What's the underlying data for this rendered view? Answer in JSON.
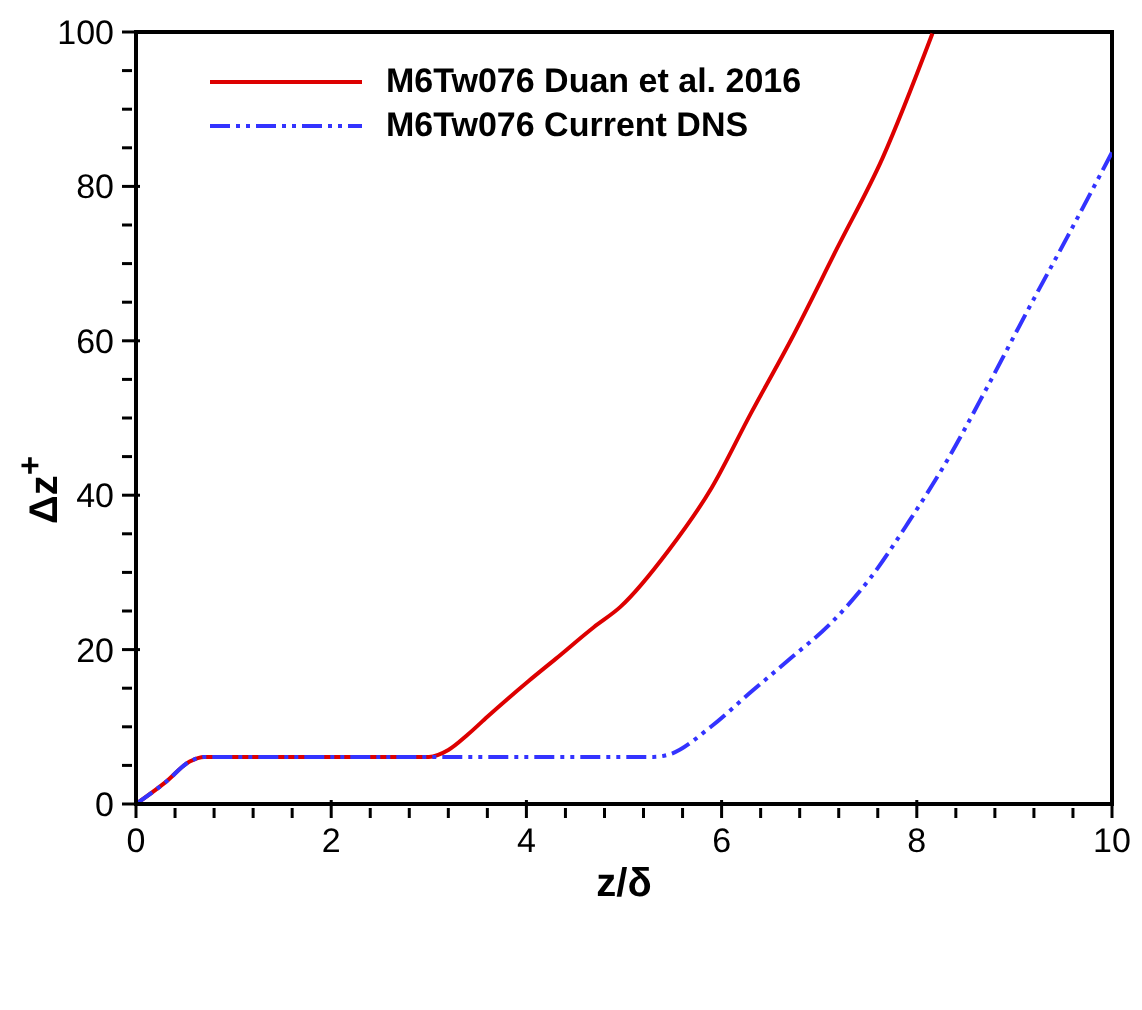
{
  "chart_data": {
    "type": "line",
    "xlabel": "z/δ",
    "ylabel": "Δz$^{+}$",
    "xlim": [
      0,
      10
    ],
    "ylim": [
      0,
      100
    ],
    "xticks": [
      0,
      {
        "value": 0.4,
        "label": null
      },
      {
        "value": 0.8,
        "label": null
      },
      {
        "value": 1.2,
        "label": null
      },
      {
        "value": 1.6,
        "label": null
      },
      2,
      {
        "value": 2.4,
        "label": null
      },
      {
        "value": 2.8,
        "label": null
      },
      {
        "value": 3.2,
        "label": null
      },
      {
        "value": 3.6,
        "label": null
      },
      4,
      {
        "value": 4.4,
        "label": null
      },
      {
        "value": 4.8,
        "label": null
      },
      {
        "value": 5.2,
        "label": null
      },
      {
        "value": 5.6,
        "label": null
      },
      6,
      {
        "value": 6.4,
        "label": null
      },
      {
        "value": 6.8,
        "label": null
      },
      {
        "value": 7.2,
        "label": null
      },
      {
        "value": 7.6,
        "label": null
      },
      8,
      {
        "value": 8.4,
        "label": null
      },
      {
        "value": 8.8,
        "label": null
      },
      {
        "value": 9.2,
        "label": null
      },
      {
        "value": 9.6,
        "label": null
      },
      10
    ],
    "yticks": [
      0,
      {
        "value": 5,
        "label": null
      },
      {
        "value": 10,
        "label": null
      },
      {
        "value": 15,
        "label": null
      },
      20,
      {
        "value": 25,
        "label": null
      },
      {
        "value": 30,
        "label": null
      },
      {
        "value": 35,
        "label": null
      },
      40,
      {
        "value": 45,
        "label": null
      },
      {
        "value": 50,
        "label": null
      },
      {
        "value": 55,
        "label": null
      },
      60,
      {
        "value": 65,
        "label": null
      },
      {
        "value": 70,
        "label": null
      },
      {
        "value": 75,
        "label": null
      },
      80,
      {
        "value": 85,
        "label": null
      },
      {
        "value": 90,
        "label": null
      },
      {
        "value": 95,
        "label": null
      },
      100
    ],
    "legend": "top left",
    "marker": "none",
    "series": [
      {
        "name": "M6Tw076 Duan et al. 2016",
        "color": "#dd0000",
        "line_style": "solid",
        "x": [
          0,
          0.3,
          0.55,
          0.7,
          3.0,
          3.2,
          3.4,
          3.6,
          4.02,
          4.3,
          4.69,
          4.96,
          5.46,
          5.9,
          6.3,
          6.71,
          7.18,
          7.65,
          8.16
        ],
        "values": [
          0,
          2.8,
          5.5,
          6.1,
          6.1,
          7,
          9,
          11.3,
          15.9,
          18.8,
          22.9,
          25.5,
          32.9,
          41,
          50.6,
          60.1,
          71.9,
          83.7,
          99.8
        ]
      },
      {
        "name": "M6Tw076 Current DNS",
        "color": "#3333ff",
        "line_style": "dashed",
        "x": [
          0,
          0.3,
          0.55,
          0.7,
          5.3,
          5.46,
          5.9,
          6.3,
          6.71,
          7.11,
          7.52,
          7.92,
          8.32,
          8.73,
          9.13,
          9.54,
          10
        ],
        "values": [
          0,
          2.8,
          5.5,
          6.1,
          6.1,
          6.4,
          10.1,
          14.5,
          18.9,
          23.3,
          29.2,
          36.6,
          44.7,
          54.2,
          63.8,
          73.4,
          84.4
        ]
      }
    ]
  }
}
